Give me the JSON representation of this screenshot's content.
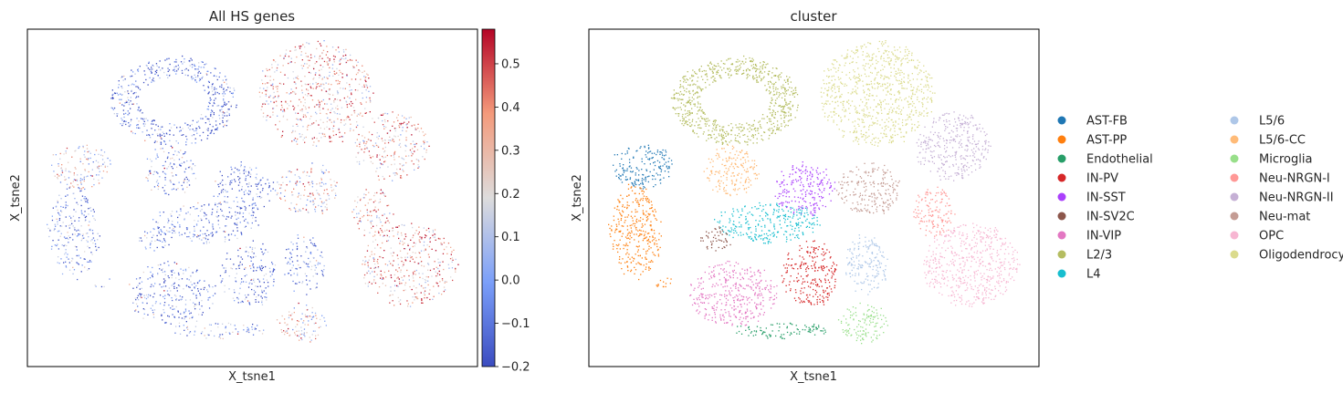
{
  "chart_data": [
    {
      "type": "scatter",
      "title": "All HS genes",
      "xlabel": "X_tsne1",
      "ylabel": "X_tsne2",
      "colorbar": {
        "range": [
          -0.2,
          0.58
        ],
        "ticks": [
          0.5,
          0.4,
          0.3,
          0.2,
          0.1,
          0.0,
          -0.1,
          -0.2
        ],
        "tick_labels": [
          "0.5",
          "0.4",
          "0.3",
          "0.2",
          "0.1",
          "0.0",
          "−0.1",
          "−0.2"
        ],
        "colormap": "coolwarm"
      },
      "cluster_values": {
        "AST-FB": 0.18,
        "AST-PP": -0.05,
        "Endothelial": 0.05,
        "IN-PV": -0.08,
        "IN-SST": -0.08,
        "IN-SV2C": -0.06,
        "IN-VIP": -0.06,
        "L2/3": -0.1,
        "L4": -0.07,
        "L5/6": -0.09,
        "L5/6-CC": 0.0,
        "Microglia": 0.22,
        "Neu-NRGN-I": 0.3,
        "Neu-NRGN-II": 0.28,
        "Neu-mat": 0.2,
        "OPC": 0.32,
        "Oligodendrocytes": 0.3
      }
    },
    {
      "type": "scatter",
      "title": "cluster",
      "xlabel": "X_tsne1",
      "ylabel": "X_tsne2",
      "legend_position": "right",
      "legend": [
        {
          "name": "AST-FB",
          "color": "#1f77b4"
        },
        {
          "name": "AST-PP",
          "color": "#ff7f0e"
        },
        {
          "name": "Endothelial",
          "color": "#279e68"
        },
        {
          "name": "IN-PV",
          "color": "#d62728"
        },
        {
          "name": "IN-SST",
          "color": "#aa40fc"
        },
        {
          "name": "IN-SV2C",
          "color": "#8c564b"
        },
        {
          "name": "IN-VIP",
          "color": "#e377c2"
        },
        {
          "name": "L2/3",
          "color": "#b5bd61"
        },
        {
          "name": "L4",
          "color": "#17becf"
        },
        {
          "name": "L5/6",
          "color": "#aec7e8"
        },
        {
          "name": "L5/6-CC",
          "color": "#ffbb78"
        },
        {
          "name": "Microglia",
          "color": "#98df8a"
        },
        {
          "name": "Neu-NRGN-I",
          "color": "#ff9896"
        },
        {
          "name": "Neu-NRGN-II",
          "color": "#c5b0d5"
        },
        {
          "name": "Neu-mat",
          "color": "#c49c94"
        },
        {
          "name": "OPC",
          "color": "#f7b6d2"
        },
        {
          "name": "Oligodendrocytes",
          "color": "#dbdb8d"
        }
      ]
    }
  ]
}
